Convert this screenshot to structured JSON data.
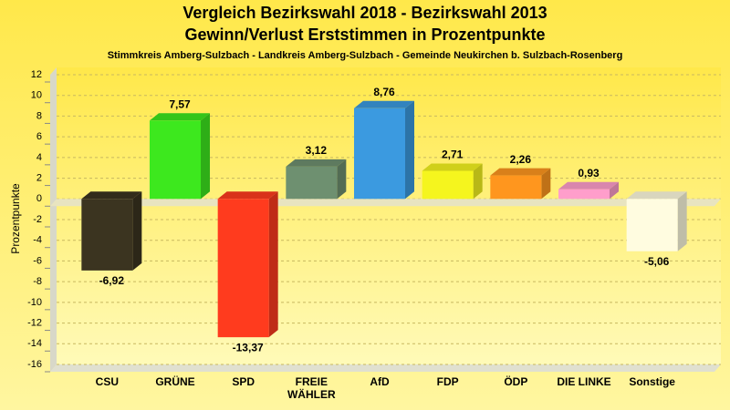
{
  "chart_data": {
    "type": "bar3d",
    "title": [
      "Vergleich Bezirkswahl 2018 - Bezirkswahl 2013",
      "Gewinn/Verlust Erststimmen in Prozentpunkte"
    ],
    "subtitle": "Stimmkreis Amberg-Sulzbach - Landkreis Amberg-Sulzbach - Gemeinde Neukirchen b. Sulzbach-Rosenberg",
    "y_label": "Prozentpunkte",
    "categories": [
      "CSU",
      "GRÜNE",
      "SPD",
      "FREIE WÄHLER",
      "AfD",
      "FDP",
      "ÖDP",
      "DIE LINKE",
      "Sonstige"
    ],
    "values": [
      -6.92,
      7.57,
      -13.37,
      3.12,
      8.76,
      2.71,
      2.26,
      0.93,
      -5.06
    ],
    "value_labels": [
      "-6,92",
      "7,57",
      "-13,37",
      "3,12",
      "8,76",
      "2,71",
      "2,26",
      "0,93",
      "-5,06"
    ],
    "colors": [
      "#3b3420",
      "#3de81e",
      "#ff3b1e",
      "#6e9070",
      "#3b9ae0",
      "#f5f51e",
      "#ff961e",
      "#ff9ecb",
      "#fffce0"
    ],
    "ylim": [
      -16,
      12
    ],
    "yticks": [
      -16,
      -14,
      -12,
      -10,
      -8,
      -6,
      -4,
      -2,
      0,
      2,
      4,
      6,
      8,
      10,
      12
    ],
    "grid": true
  }
}
